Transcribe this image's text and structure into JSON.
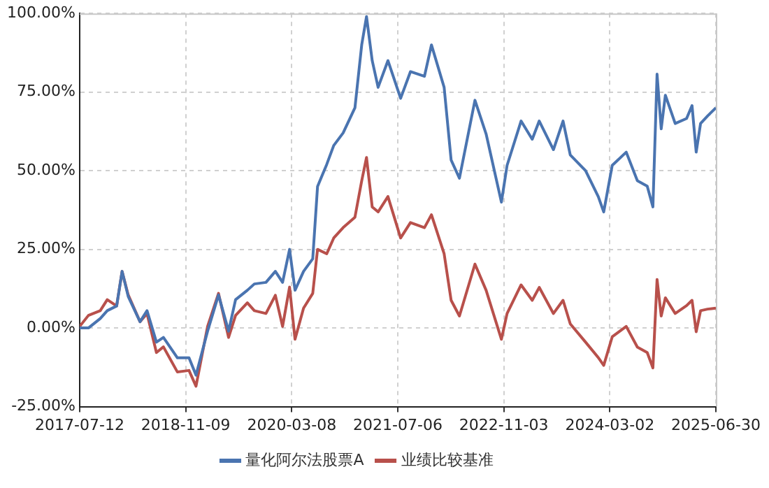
{
  "chart_data": {
    "type": "line",
    "x": [
      "2017-07-12",
      "2017-08-21",
      "2017-10-14",
      "2017-11-15",
      "2017-12-28",
      "2018-01-22",
      "2018-02-19",
      "2018-04-14",
      "2018-05-16",
      "2018-06-28",
      "2018-07-30",
      "2018-10-02",
      "2018-11-24",
      "2018-12-26",
      "2019-02-17",
      "2019-04-08",
      "2019-05-24",
      "2019-06-25",
      "2019-08-18",
      "2019-09-19",
      "2019-11-11",
      "2019-12-24",
      "2020-01-26",
      "2020-02-27",
      "2020-03-23",
      "2020-05-01",
      "2020-06-12",
      "2020-07-04",
      "2020-08-15",
      "2020-09-16",
      "2020-10-29",
      "2020-12-22",
      "2021-01-22",
      "2021-02-13",
      "2021-03-11",
      "2021-04-07",
      "2021-05-22",
      "2021-07-19",
      "2021-09-02",
      "2021-11-05",
      "2021-12-07",
      "2022-02-03",
      "2022-03-07",
      "2022-04-14",
      "2022-06-24",
      "2022-08-14",
      "2022-10-23",
      "2022-11-18",
      "2023-01-21",
      "2023-03-13",
      "2023-04-14",
      "2023-06-18",
      "2023-08-01",
      "2023-09-03",
      "2023-11-12",
      "2024-01-09",
      "2024-02-03",
      "2024-03-13",
      "2024-05-16",
      "2024-07-06",
      "2024-08-20",
      "2024-09-15",
      "2024-10-04",
      "2024-10-23",
      "2024-11-11",
      "2024-12-26",
      "2025-02-16",
      "2025-03-13",
      "2025-04-01",
      "2025-04-21",
      "2025-05-23",
      "2025-06-30"
    ],
    "series": [
      {
        "name": "量化阿尔法股票A",
        "color": "#4a74b0",
        "values": [
          0,
          0,
          3,
          5.5,
          7,
          18,
          10,
          2,
          5.5,
          -4.5,
          -3,
          -9.5,
          -9.5,
          -15,
          -1,
          10.5,
          -1,
          9,
          12,
          14,
          14.5,
          18,
          14.5,
          25,
          12,
          18,
          22,
          45,
          52,
          58,
          62,
          70,
          90,
          99,
          85,
          76.5,
          85,
          73,
          81.5,
          80,
          90,
          76.5,
          53.4,
          47.6,
          72.4,
          61.7,
          40,
          51.7,
          65.8,
          60,
          65.8,
          56.7,
          65.8,
          55,
          50,
          41.8,
          36.9,
          51.7,
          55.9,
          46.8,
          45.1,
          38.5,
          80.7,
          63.3,
          74,
          65,
          66.6,
          70.7,
          55.9,
          65,
          67.4,
          70
        ]
      },
      {
        "name": "业绩比较基准",
        "color": "#b8504b",
        "values": [
          0.5,
          4,
          5.5,
          9,
          7,
          18,
          10.5,
          2,
          4.6,
          -7.8,
          -6,
          -14,
          -13.5,
          -18.5,
          0.5,
          11,
          -3,
          4,
          8,
          5.5,
          4.6,
          10.4,
          0.5,
          13,
          -3.6,
          6.3,
          11,
          25,
          23.6,
          28.6,
          31.9,
          35.2,
          46.8,
          54.2,
          38.5,
          36.9,
          41.8,
          28.6,
          33.5,
          31.9,
          36,
          23.6,
          8.8,
          3.8,
          20.3,
          12,
          -3.6,
          4.6,
          13.7,
          8.8,
          12.9,
          4.6,
          8.8,
          1.3,
          -4.5,
          -9.4,
          -11.9,
          -2.8,
          0.5,
          -6.1,
          -7.8,
          -12.7,
          15.4,
          3.8,
          9.6,
          4.6,
          7.1,
          8.8,
          -1.2,
          5.5,
          6,
          6.3
        ]
      }
    ],
    "xlim": [
      "2017-07-12",
      "2025-06-30"
    ],
    "xticks": [
      "2017-07-12",
      "2018-11-09",
      "2020-03-08",
      "2021-07-06",
      "2022-11-03",
      "2024-03-02",
      "2025-06-30"
    ],
    "ylim": [
      -25,
      100
    ],
    "yticks": [
      {
        "value": -25,
        "label": "-25.00%"
      },
      {
        "value": 0,
        "label": "0.00%"
      },
      {
        "value": 25,
        "label": "25.00%"
      },
      {
        "value": 50,
        "label": "50.00%"
      },
      {
        "value": 75,
        "label": "75.00%"
      },
      {
        "value": 100,
        "label": "100.00%"
      }
    ],
    "grid": true,
    "legend": "bottom",
    "marker": "none",
    "line_style": "solid"
  }
}
